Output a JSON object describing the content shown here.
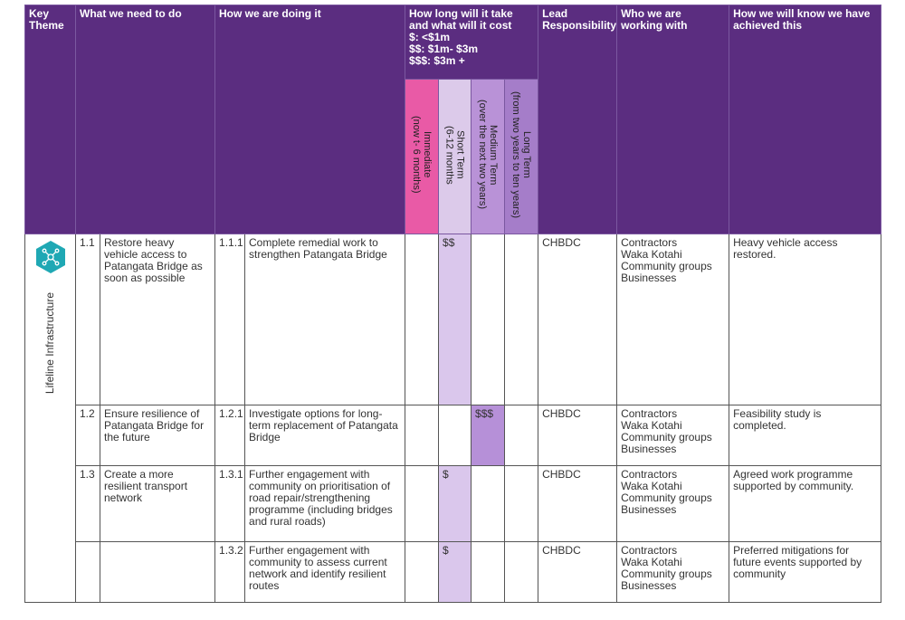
{
  "header": {
    "key_theme": "Key Theme",
    "what": "What we need to do",
    "how": "How we are doing it",
    "cost": [
      "How long will it take and what will it cost",
      "$: <$1m",
      "$$: $1m- $3m",
      "$$$: $3m +"
    ],
    "lead": "Lead Responsibility",
    "who": "Who we are working with",
    "know": "How we will know we have achieved this",
    "timeframes": [
      [
        "Immediate",
        "(now t- 6 months)"
      ],
      [
        "Short Term",
        "(6-12 months"
      ],
      [
        "Medium Term",
        "(over the next two years)"
      ],
      [
        "Long Term",
        "(from two years to ten years)"
      ]
    ]
  },
  "theme": "Lifeline Infrastructure",
  "rows": [
    {
      "num": "1.1",
      "what": "Restore heavy vehicle access to Patangata Bridge as soon as possible",
      "sub": "1.1.1",
      "how": "Complete remedial work to strengthen Patangata Bridge",
      "cost": [
        null,
        "$$",
        null,
        null
      ],
      "lead": "CHBDC",
      "who": [
        "Contractors",
        "Waka Kotahi",
        "Community groups",
        "Businesses"
      ],
      "know": "Heavy vehicle access restored."
    },
    {
      "num": "1.2",
      "what": "Ensure resilience of Patangata Bridge for the future",
      "sub": "1.2.1",
      "how": "Investigate options for long-term replacement of Patangata Bridge",
      "cost": [
        null,
        null,
        "$$$",
        null
      ],
      "lead": "CHBDC",
      "who": [
        "Contractors",
        "Waka Kotahi",
        "Community groups",
        "Businesses"
      ],
      "know": "Feasibility study is completed."
    },
    {
      "num": "1.3",
      "what": "Create a more resilient transport network",
      "sub": "1.3.1",
      "how": "Further engagement with community on prioritisation of road repair/strengthening programme (including bridges and rural roads)",
      "cost": [
        null,
        "$",
        null,
        null
      ],
      "lead": "CHBDC",
      "who": [
        "Contractors",
        "Waka Kotahi",
        "Community groups",
        "Businesses"
      ],
      "know": "Agreed work programme supported by community."
    },
    {
      "num": null,
      "what": null,
      "sub": "1.3.2",
      "how": "Further engagement with community to assess current network and identify resilient routes",
      "cost": [
        null,
        "$",
        null,
        null
      ],
      "lead": "CHBDC",
      "who": [
        "Contractors",
        "Waka Kotahi",
        "Community groups",
        "Businesses"
      ],
      "know": "Preferred mitigations for future events supported by community"
    }
  ]
}
